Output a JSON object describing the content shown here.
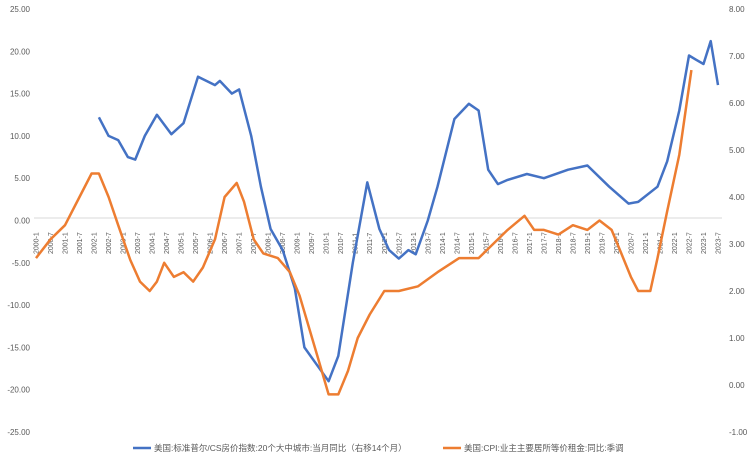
{
  "chart_data": {
    "type": "line",
    "title": "",
    "x_tick_labels": [
      "2000-1",
      "2000-7",
      "2001-1",
      "2001-7",
      "2002-1",
      "2002-7",
      "2003-1",
      "2003-7",
      "2004-1",
      "2004-7",
      "2005-1",
      "2005-7",
      "2006-1",
      "2006-7",
      "2007-1",
      "2007-7",
      "2008-1",
      "2008-7",
      "2009-1",
      "2009-7",
      "2010-1",
      "2010-7",
      "2011-1",
      "2011-7",
      "2012-1",
      "2012-7",
      "2013-1",
      "2013-7",
      "2014-1",
      "2014-7",
      "2015-1",
      "2015-7",
      "2016-1",
      "2016-7",
      "2017-1",
      "2017-7",
      "2018-1",
      "2018-7",
      "2019-1",
      "2019-7",
      "2020-1",
      "2020-7",
      "2021-1",
      "2021-7",
      "2022-1",
      "2022-7",
      "2023-1",
      "2023-7"
    ],
    "left_axis": {
      "range": [
        -25,
        25
      ],
      "step": 5,
      "tick_labels": [
        "25.00",
        "20.00",
        "15.00",
        "10.00",
        "5.00",
        "0.00",
        "-5.00",
        "-10.00",
        "-15.00",
        "-20.00",
        "-25.00"
      ]
    },
    "right_axis": {
      "range": [
        -1,
        8
      ],
      "step": 1,
      "tick_labels": [
        "8.00",
        "7.00",
        "6.00",
        "5.00",
        "4.00",
        "3.00",
        "2.00",
        "1.00",
        "0.00",
        "-1.00"
      ]
    },
    "legend_position": "bottom",
    "grid": false,
    "series": [
      {
        "name": "美国:标准普尔/CS房价指数:20个大中城市:当月同比（右移14个月）",
        "axis": "left",
        "color": "#4472C4",
        "points": [
          [
            "2002-03",
            12.2
          ],
          [
            "2002-07",
            10
          ],
          [
            "2002-11",
            9.5
          ],
          [
            "2003-03",
            7.5
          ],
          [
            "2003-06",
            7.2
          ],
          [
            "2003-10",
            10
          ],
          [
            "2004-03",
            12.5
          ],
          [
            "2004-09",
            10.2
          ],
          [
            "2005-02",
            11.5
          ],
          [
            "2005-08",
            17
          ],
          [
            "2006-03",
            16
          ],
          [
            "2006-05",
            16.5
          ],
          [
            "2006-10",
            15
          ],
          [
            "2007-01",
            15.5
          ],
          [
            "2007-06",
            10
          ],
          [
            "2007-10",
            4
          ],
          [
            "2008-02",
            -1
          ],
          [
            "2008-07",
            -3.5
          ],
          [
            "2008-12",
            -8
          ],
          [
            "2009-04",
            -15
          ],
          [
            "2009-09",
            -17
          ],
          [
            "2010-02",
            -19
          ],
          [
            "2010-06",
            -16
          ],
          [
            "2010-12",
            -5
          ],
          [
            "2011-06",
            4.5
          ],
          [
            "2011-11",
            -1
          ],
          [
            "2012-03",
            -3.5
          ],
          [
            "2012-07",
            -4.5
          ],
          [
            "2012-11",
            -3.5
          ],
          [
            "2013-02",
            -4
          ],
          [
            "2013-07",
            0
          ],
          [
            "2013-11",
            4
          ],
          [
            "2014-06",
            12
          ],
          [
            "2014-12",
            13.8
          ],
          [
            "2015-04",
            13
          ],
          [
            "2015-08",
            6
          ],
          [
            "2015-12",
            4.3
          ],
          [
            "2016-04",
            4.8
          ],
          [
            "2016-12",
            5.5
          ],
          [
            "2017-07",
            5
          ],
          [
            "2018-05",
            6
          ],
          [
            "2019-01",
            6.5
          ],
          [
            "2019-10",
            4
          ],
          [
            "2020-06",
            2
          ],
          [
            "2020-10",
            2.2
          ],
          [
            "2021-06",
            4
          ],
          [
            "2021-10",
            7
          ],
          [
            "2022-03",
            13
          ],
          [
            "2022-07",
            19.5
          ],
          [
            "2022-10",
            19
          ],
          [
            "2023-01",
            18.5
          ],
          [
            "2023-04",
            21.2
          ],
          [
            "2023-07",
            16
          ]
        ]
      },
      {
        "name": "美国:CPI:业主主要居所等价租金:同比:季调",
        "axis": "right",
        "color": "#ED7D31",
        "points": [
          [
            "2000-01",
            2.7
          ],
          [
            "2000-07",
            3.1
          ],
          [
            "2001-01",
            3.4
          ],
          [
            "2001-07",
            4.0
          ],
          [
            "2001-12",
            4.5
          ],
          [
            "2002-03",
            4.5
          ],
          [
            "2002-07",
            4.0
          ],
          [
            "2002-11",
            3.4
          ],
          [
            "2003-04",
            2.66
          ],
          [
            "2003-08",
            2.2
          ],
          [
            "2003-12",
            2.0
          ],
          [
            "2004-03",
            2.2
          ],
          [
            "2004-06",
            2.6
          ],
          [
            "2004-10",
            2.3
          ],
          [
            "2005-02",
            2.4
          ],
          [
            "2005-06",
            2.2
          ],
          [
            "2005-10",
            2.5
          ],
          [
            "2006-03",
            3.1
          ],
          [
            "2006-07",
            4.0
          ],
          [
            "2006-12",
            4.3
          ],
          [
            "2007-03",
            3.9
          ],
          [
            "2007-07",
            3.1
          ],
          [
            "2007-11",
            2.8
          ],
          [
            "2008-05",
            2.7
          ],
          [
            "2008-10",
            2.4
          ],
          [
            "2009-02",
            1.9
          ],
          [
            "2009-06",
            1.2
          ],
          [
            "2009-10",
            0.5
          ],
          [
            "2010-02",
            -0.2
          ],
          [
            "2010-06",
            -0.2
          ],
          [
            "2010-10",
            0.3
          ],
          [
            "2011-02",
            1.0
          ],
          [
            "2011-07",
            1.5
          ],
          [
            "2012-01",
            2.0
          ],
          [
            "2012-07",
            2.0
          ],
          [
            "2013-03",
            2.1
          ],
          [
            "2013-11",
            2.4
          ],
          [
            "2014-08",
            2.7
          ],
          [
            "2015-04",
            2.7
          ],
          [
            "2015-10",
            3.0
          ],
          [
            "2016-04",
            3.3
          ],
          [
            "2016-11",
            3.6
          ],
          [
            "2017-03",
            3.3
          ],
          [
            "2017-07",
            3.3
          ],
          [
            "2018-01",
            3.2
          ],
          [
            "2018-07",
            3.4
          ],
          [
            "2019-01",
            3.3
          ],
          [
            "2019-06",
            3.5
          ],
          [
            "2019-11",
            3.3
          ],
          [
            "2020-03",
            2.8
          ],
          [
            "2020-07",
            2.3
          ],
          [
            "2020-10",
            2.0
          ],
          [
            "2021-03",
            2.0
          ],
          [
            "2021-06",
            2.7
          ],
          [
            "2021-10",
            3.7
          ],
          [
            "2022-03",
            4.9
          ],
          [
            "2022-08",
            6.7
          ]
        ]
      }
    ]
  }
}
